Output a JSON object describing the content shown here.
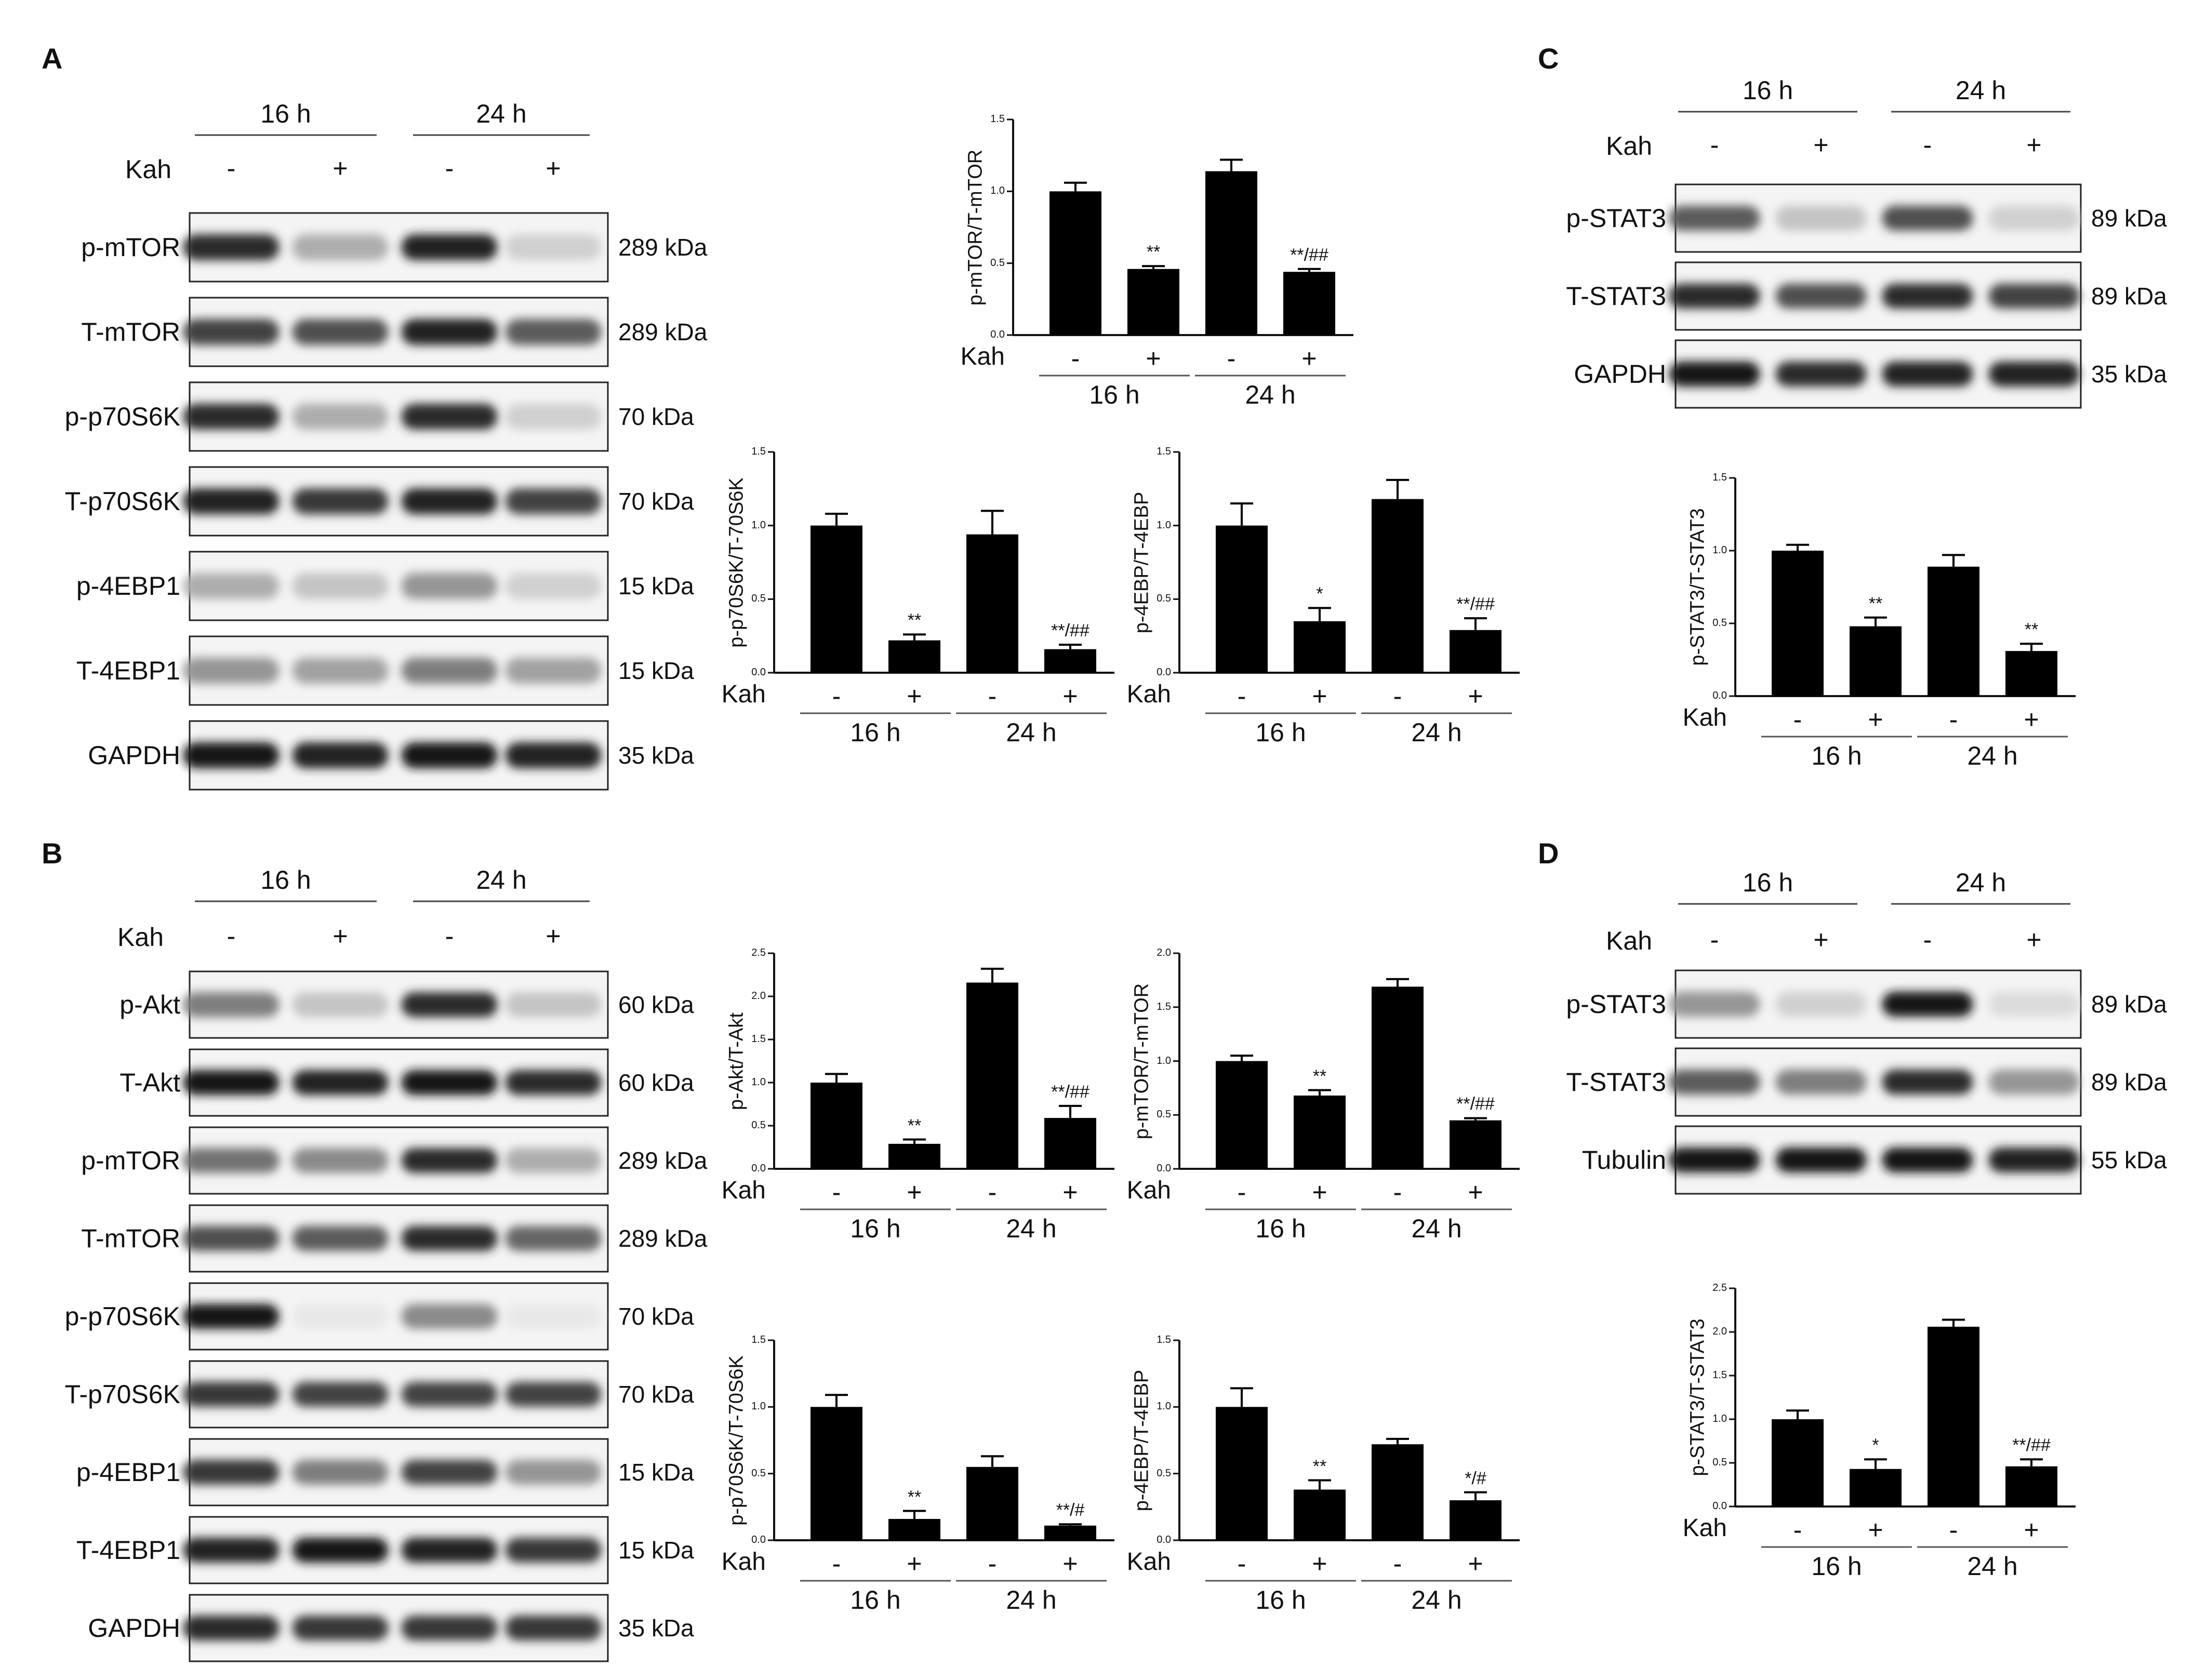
{
  "panels": [
    {
      "letter": "A",
      "blot": {
        "headers": [
          "16 h",
          "24 h"
        ],
        "kah_label": "Kah",
        "kah": [
          "-",
          "+",
          "-",
          "+"
        ],
        "bands": [
          {
            "label": "p-mTOR",
            "kda": "289 kDa"
          },
          {
            "label": "T-mTOR",
            "kda": "289 kDa"
          },
          {
            "label": "p-p70S6K",
            "kda": "70 kDa"
          },
          {
            "label": "T-p70S6K",
            "kda": "70 kDa"
          },
          {
            "label": "p-4EBP1",
            "kda": "15 kDa"
          },
          {
            "label": "T-4EBP1",
            "kda": "15 kDa"
          },
          {
            "label": "GAPDH",
            "kda": "35 kDa"
          }
        ]
      }
    },
    {
      "letter": "B",
      "blot": {
        "headers": [
          "16 h",
          "24 h"
        ],
        "kah_label": "Kah",
        "kah": [
          "-",
          "+",
          "-",
          "+"
        ],
        "bands": [
          {
            "label": "p-Akt",
            "kda": "60 kDa"
          },
          {
            "label": "T-Akt",
            "kda": "60 kDa"
          },
          {
            "label": "p-mTOR",
            "kda": "289 kDa"
          },
          {
            "label": "T-mTOR",
            "kda": "289 kDa"
          },
          {
            "label": "p-p70S6K",
            "kda": "70 kDa"
          },
          {
            "label": "T-p70S6K",
            "kda": "70 kDa"
          },
          {
            "label": "p-4EBP1",
            "kda": "15 kDa"
          },
          {
            "label": "T-4EBP1",
            "kda": "15 kDa"
          },
          {
            "label": "GAPDH",
            "kda": "35 kDa"
          }
        ]
      }
    },
    {
      "letter": "C",
      "blot": {
        "headers": [
          "16 h",
          "24 h"
        ],
        "kah_label": "Kah",
        "kah": [
          "-",
          "+",
          "-",
          "+"
        ],
        "bands": [
          {
            "label": "p-STAT3",
            "kda": "89 kDa"
          },
          {
            "label": "T-STAT3",
            "kda": "89 kDa"
          },
          {
            "label": "GAPDH",
            "kda": "35 kDa"
          }
        ]
      }
    },
    {
      "letter": "D",
      "blot": {
        "headers": [
          "16 h",
          "24 h"
        ],
        "kah_label": "Kah",
        "kah": [
          "-",
          "+",
          "-",
          "+"
        ],
        "bands": [
          {
            "label": "p-STAT3",
            "kda": "89 kDa"
          },
          {
            "label": "T-STAT3",
            "kda": "89 kDa"
          },
          {
            "label": "Tubulin",
            "kda": "55 kDa"
          }
        ]
      }
    }
  ],
  "chart_data": [
    {
      "type": "bar",
      "panel": "A",
      "ylabel": "p-mTOR/T-mTOR",
      "ylim": [
        0,
        1.5
      ],
      "yticks": [
        "0.0",
        "0.5",
        "1.0",
        "1.5"
      ],
      "kah_label": "Kah",
      "kah": [
        "-",
        "+",
        "-",
        "+"
      ],
      "groups": [
        "16 h",
        "24 h"
      ],
      "values": [
        1.0,
        0.46,
        1.14,
        0.44
      ],
      "errors": [
        0.06,
        0.02,
        0.08,
        0.02
      ],
      "sig": [
        "",
        "**",
        "",
        "**/##"
      ]
    },
    {
      "type": "bar",
      "panel": "A",
      "ylabel": "p-p70S6K/T-70S6K",
      "ylim": [
        0,
        1.5
      ],
      "yticks": [
        "0.0",
        "0.5",
        "1.0",
        "1.5"
      ],
      "kah_label": "Kah",
      "kah": [
        "-",
        "+",
        "-",
        "+"
      ],
      "groups": [
        "16 h",
        "24 h"
      ],
      "values": [
        1.0,
        0.22,
        0.94,
        0.16
      ],
      "errors": [
        0.08,
        0.04,
        0.16,
        0.03
      ],
      "sig": [
        "",
        "**",
        "",
        "**/##"
      ]
    },
    {
      "type": "bar",
      "panel": "A",
      "ylabel": "p-4EBP/T-4EBP",
      "ylim": [
        0,
        1.5
      ],
      "yticks": [
        "0.0",
        "0.5",
        "1.0",
        "1.5"
      ],
      "kah_label": "Kah",
      "kah": [
        "-",
        "+",
        "-",
        "+"
      ],
      "groups": [
        "16 h",
        "24 h"
      ],
      "values": [
        1.0,
        0.35,
        1.18,
        0.29
      ],
      "errors": [
        0.15,
        0.09,
        0.13,
        0.08
      ],
      "sig": [
        "",
        "*",
        "",
        "**/##"
      ]
    },
    {
      "type": "bar",
      "panel": "B",
      "ylabel": "p-Akt/T-Akt",
      "ylim": [
        0,
        2.5
      ],
      "yticks": [
        "0.0",
        "0.5",
        "1.0",
        "1.5",
        "2.0",
        "2.5"
      ],
      "kah_label": "Kah",
      "kah": [
        "-",
        "+",
        "-",
        "+"
      ],
      "groups": [
        "16 h",
        "24 h"
      ],
      "values": [
        1.0,
        0.29,
        2.16,
        0.59
      ],
      "errors": [
        0.1,
        0.05,
        0.16,
        0.14
      ],
      "sig": [
        "",
        "**",
        "",
        "**/##"
      ]
    },
    {
      "type": "bar",
      "panel": "B",
      "ylabel": "p-mTOR/T-mTOR",
      "ylim": [
        0,
        2.0
      ],
      "yticks": [
        "0.0",
        "0.5",
        "1.0",
        "1.5",
        "2.0"
      ],
      "kah_label": "Kah",
      "kah": [
        "-",
        "+",
        "-",
        "+"
      ],
      "groups": [
        "16 h",
        "24 h"
      ],
      "values": [
        1.0,
        0.68,
        1.69,
        0.45
      ],
      "errors": [
        0.05,
        0.05,
        0.07,
        0.02
      ],
      "sig": [
        "",
        "**",
        "",
        "**/##"
      ]
    },
    {
      "type": "bar",
      "panel": "B",
      "ylabel": "p-p70S6K/T-70S6K",
      "ylim": [
        0,
        1.5
      ],
      "yticks": [
        "0.0",
        "0.5",
        "1.0",
        "1.5"
      ],
      "kah_label": "Kah",
      "kah": [
        "-",
        "+",
        "-",
        "+"
      ],
      "groups": [
        "16 h",
        "24 h"
      ],
      "values": [
        1.0,
        0.16,
        0.55,
        0.11
      ],
      "errors": [
        0.09,
        0.06,
        0.08,
        0.01
      ],
      "sig": [
        "",
        "**",
        "",
        "**/#"
      ]
    },
    {
      "type": "bar",
      "panel": "B",
      "ylabel": "p-4EBP/T-4EBP",
      "ylim": [
        0,
        1.5
      ],
      "yticks": [
        "0.0",
        "0.5",
        "1.0",
        "1.5"
      ],
      "kah_label": "Kah",
      "kah": [
        "-",
        "+",
        "-",
        "+"
      ],
      "groups": [
        "16 h",
        "24 h"
      ],
      "values": [
        1.0,
        0.38,
        0.72,
        0.3
      ],
      "errors": [
        0.14,
        0.07,
        0.04,
        0.06
      ],
      "sig": [
        "",
        "**",
        "",
        "*/#"
      ]
    },
    {
      "type": "bar",
      "panel": "C",
      "ylabel": "p-STAT3/T-STAT3",
      "ylim": [
        0,
        1.5
      ],
      "yticks": [
        "0.0",
        "0.5",
        "1.0",
        "1.5"
      ],
      "kah_label": "Kah",
      "kah": [
        "-",
        "+",
        "-",
        "+"
      ],
      "groups": [
        "16 h",
        "24 h"
      ],
      "values": [
        1.0,
        0.48,
        0.89,
        0.31
      ],
      "errors": [
        0.04,
        0.06,
        0.08,
        0.05
      ],
      "sig": [
        "",
        "**",
        "",
        "**"
      ]
    },
    {
      "type": "bar",
      "panel": "D",
      "ylabel": "p-STAT3/T-STAT3",
      "ylim": [
        0,
        2.5
      ],
      "yticks": [
        "0.0",
        "0.5",
        "1.0",
        "1.5",
        "2.0",
        "2.5"
      ],
      "kah_label": "Kah",
      "kah": [
        "-",
        "+",
        "-",
        "+"
      ],
      "groups": [
        "16 h",
        "24 h"
      ],
      "values": [
        1.0,
        0.43,
        2.06,
        0.46
      ],
      "errors": [
        0.1,
        0.11,
        0.08,
        0.08
      ],
      "sig": [
        "",
        "*",
        "",
        "**/##"
      ]
    }
  ]
}
